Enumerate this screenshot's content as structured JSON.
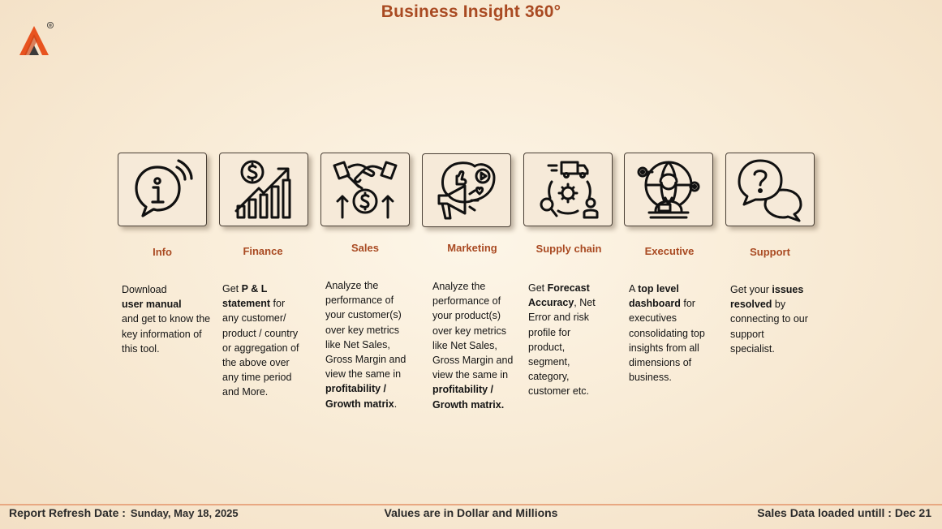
{
  "header": {
    "title": "Business Insight 360°",
    "logo": "company-logo",
    "logo_symbol": "®"
  },
  "cards": [
    {
      "id": "info",
      "icon": "info-icon",
      "title": "Info",
      "desc": [
        "Download ",
        "user manual",
        " and get to know the key information of this tool."
      ]
    },
    {
      "id": "finance",
      "icon": "finance-growth-icon",
      "title": "Finance",
      "desc": [
        "Get ",
        "P & L statement",
        " for any customer/ product / country or aggregation of the above over any time period and More."
      ]
    },
    {
      "id": "sales",
      "icon": "handshake-icon",
      "title": "Sales",
      "desc": [
        "Analyze the performance of your customer(s) over key metrics like Net Sales, Gross Margin and view the same in ",
        "profitability / Growth matrix",
        "."
      ]
    },
    {
      "id": "marketing",
      "icon": "megaphone-icon",
      "title": "Marketing",
      "desc": [
        "Analyze the performance of your product(s) over key metrics like Net Sales, Gross Margin and view the same in ",
        "profitability / Growth matrix.",
        ""
      ]
    },
    {
      "id": "supply-chain",
      "icon": "supply-chain-icon",
      "title": "Supply chain",
      "desc": [
        "Get ",
        "Forecast Accuracy",
        ", Net Error and risk profile for product, segment, category, customer etc."
      ]
    },
    {
      "id": "executive",
      "icon": "executive-icon",
      "title": "Executive",
      "desc": [
        "A ",
        "top level dashboard",
        " for executives consolidating top insights from all dimensions of business."
      ]
    },
    {
      "id": "support",
      "icon": "support-chat-icon",
      "title": "Support",
      "desc": [
        "Get your ",
        "issues resolved",
        " by connecting to our support specialist."
      ]
    }
  ],
  "footer": {
    "refresh_label": "Report Refresh Date :",
    "refresh_date": "Sunday, May 18, 2025",
    "units_note": "Values are in Dollar and Millions",
    "loaded_label": "Sales Data loaded untill : Dec 21"
  },
  "colors": {
    "accent": "#a94a22",
    "logo_orange": "#e8531f",
    "footer_line": "#e8a882",
    "background": "#f8ead4"
  }
}
